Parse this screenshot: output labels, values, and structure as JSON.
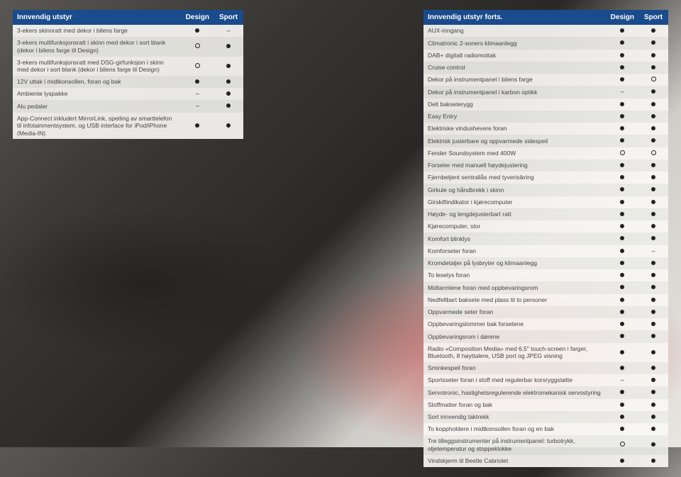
{
  "left": {
    "title": "Innvendig utstyr",
    "cols": [
      "Design",
      "Sport"
    ],
    "rows": [
      {
        "desc": "3-ekers skinnratt med dekor i bilens farge",
        "m": [
          "filled",
          "dash"
        ]
      },
      {
        "desc": "3-ekers multifunksjonsratt i skinn med dekor i sort blank (dekor i bilens farge til Design)",
        "m": [
          "open",
          "filled"
        ]
      },
      {
        "desc": "3-ekers multifunksjonsratt med DSG-girfunksjon i skinn med dekor i sort blank (dekor i bilens farge til Design)",
        "m": [
          "open",
          "filled"
        ]
      },
      {
        "desc": "12V uttak i midtkonsollen, foran og bak",
        "m": [
          "filled",
          "filled"
        ]
      },
      {
        "desc": "Ambiente lyspakke",
        "m": [
          "dash",
          "filled"
        ]
      },
      {
        "desc": "Alu pedaler",
        "m": [
          "dash",
          "filled"
        ]
      },
      {
        "desc": "App-Connect inkludert MirrorLink, speiling av smarttelefon til infotainmentsystem, og USB interface for iPod/iPhone (Media-IN)",
        "m": [
          "filled",
          "filled"
        ]
      }
    ]
  },
  "right": {
    "title": "Innvendig utstyr forts.",
    "cols": [
      "Design",
      "Sport"
    ],
    "rows": [
      {
        "desc": "AUX-inngang",
        "m": [
          "filled",
          "filled"
        ]
      },
      {
        "desc": "Climatronic 2-soners klimaanlegg",
        "m": [
          "filled",
          "filled"
        ]
      },
      {
        "desc": "DAB+ digitalt radiomottak",
        "m": [
          "filled",
          "filled"
        ]
      },
      {
        "desc": "Cruise control",
        "m": [
          "filled",
          "filled"
        ]
      },
      {
        "desc": "Dekor på instrumentpanel i bilens farge",
        "m": [
          "filled",
          "open"
        ]
      },
      {
        "desc": "Dekor på instrumentpanel i karbon optikk",
        "m": [
          "dash",
          "filled"
        ]
      },
      {
        "desc": "Delt bakseterygg",
        "m": [
          "filled",
          "filled"
        ]
      },
      {
        "desc": "Easy Entry",
        "m": [
          "filled",
          "filled"
        ]
      },
      {
        "desc": "Elektriske vindushevere foran",
        "m": [
          "filled",
          "filled"
        ]
      },
      {
        "desc": "Elektrisk justerbare og oppvarmede sidespeil",
        "m": [
          "filled",
          "filled"
        ]
      },
      {
        "desc": "Fender Soundsystem med 400W",
        "m": [
          "open",
          "open"
        ]
      },
      {
        "desc": "Forseter med manuell høydejustering",
        "m": [
          "filled",
          "filled"
        ]
      },
      {
        "desc": "Fjernbetjent sentrallås med tyverisikring",
        "m": [
          "filled",
          "filled"
        ]
      },
      {
        "desc": "Girkule og håndbrekk i skinn",
        "m": [
          "filled",
          "filled"
        ]
      },
      {
        "desc": "Girskiftindikator i kjørecomputer",
        "m": [
          "filled",
          "filled"
        ]
      },
      {
        "desc": "Høyde- og lengdejusterbart ratt",
        "m": [
          "filled",
          "filled"
        ]
      },
      {
        "desc": "Kjørecomputer, stor",
        "m": [
          "filled",
          "filled"
        ]
      },
      {
        "desc": "Komfort blinklys",
        "m": [
          "filled",
          "filled"
        ]
      },
      {
        "desc": "Komforseter foran",
        "m": [
          "filled",
          "dash"
        ]
      },
      {
        "desc": "Kromdetaljer på lysbryter og klimaanlegg",
        "m": [
          "filled",
          "filled"
        ]
      },
      {
        "desc": "To leselys foran",
        "m": [
          "filled",
          "filled"
        ]
      },
      {
        "desc": "Midtarmlene foran med oppbevaringsrom",
        "m": [
          "filled",
          "filled"
        ]
      },
      {
        "desc": "Nedfellbart baksete med plass til to personer",
        "m": [
          "filled",
          "filled"
        ]
      },
      {
        "desc": "Oppvarmede seter foran",
        "m": [
          "filled",
          "filled"
        ]
      },
      {
        "desc": "Oppbevaringslommer bak forsetene",
        "m": [
          "filled",
          "filled"
        ]
      },
      {
        "desc": "Oppbevaringsrom i dørene",
        "m": [
          "filled",
          "filled"
        ]
      },
      {
        "desc": "Radio «Composition Media» med 6,5\" touch-screen i farger, Bluetooth, 8 høyttalere, USB port og JPEG visning",
        "m": [
          "filled",
          "filled"
        ]
      },
      {
        "desc": "Sminkespeil foran",
        "m": [
          "filled",
          "filled"
        ]
      },
      {
        "desc": "Sportsseter foran i stoff med regulerbar korsryggstøtte",
        "m": [
          "dash",
          "filled"
        ]
      },
      {
        "desc": "Servotronic, hastighetsregulerende elektromekanisk servostyring",
        "m": [
          "filled",
          "filled"
        ]
      },
      {
        "desc": "Stoffmatter foran og bak",
        "m": [
          "filled",
          "filled"
        ]
      },
      {
        "desc": "Sort innvendig taktrekk",
        "m": [
          "filled",
          "filled"
        ]
      },
      {
        "desc": "To koppholdere i midtkonsollen foran og en bak",
        "m": [
          "filled",
          "filled"
        ]
      },
      {
        "desc": "Tre tilleggsinstrumenter på instrumentpanel: turbotrykk, oljetemperatur og stoppeklokke",
        "m": [
          "open",
          "filled"
        ]
      },
      {
        "desc": "Vindskjerm til Beetle Cabriolet",
        "m": [
          "filled",
          "filled"
        ]
      }
    ]
  }
}
